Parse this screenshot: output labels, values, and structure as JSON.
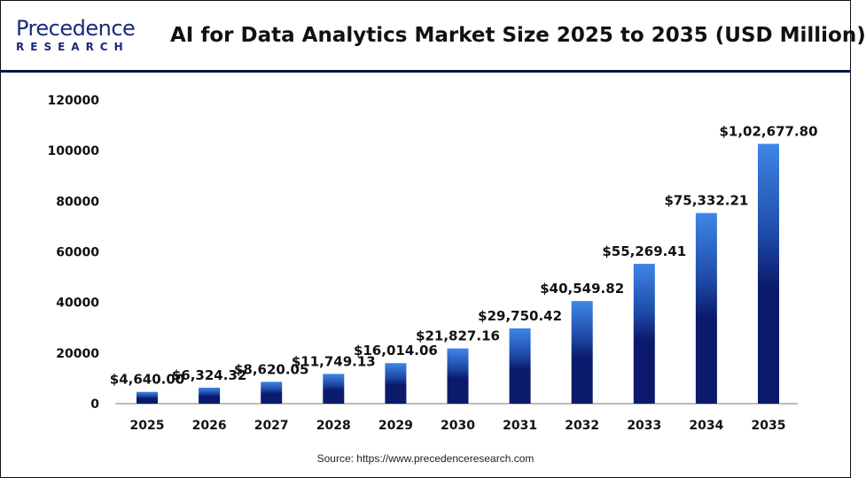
{
  "header": {
    "logo_line1": "Precedence",
    "logo_line2": "RESEARCH",
    "title": "AI for Data Analytics Market Size 2025 to 2035 (USD Million)"
  },
  "footer": {
    "source": "Source: https://www.precedenceresearch.com"
  },
  "colors": {
    "bar_top": "#3f86e6",
    "bar_bottom": "#0b1a6b",
    "header_rule": "#0d1446"
  },
  "chart_data": {
    "type": "bar",
    "title": "AI for Data Analytics Market Size 2025 to 2035 (USD Million)",
    "categories": [
      "2025",
      "2026",
      "2027",
      "2028",
      "2029",
      "2030",
      "2031",
      "2032",
      "2033",
      "2034",
      "2035"
    ],
    "values": [
      4640.0,
      6324.32,
      8620.05,
      11749.13,
      16014.06,
      21827.16,
      29750.42,
      40549.82,
      55269.41,
      75332.21,
      102677.8
    ],
    "data_labels": [
      "$4,640.00",
      "$6,324.32",
      "$8,620.05",
      "$11,749.13",
      "$16,014.06",
      "$21,827.16",
      "$29,750.42",
      "$40,549.82",
      "$55,269.41",
      "$75,332.21",
      "$1,02,677.80"
    ],
    "yticks": [
      "0",
      "20000",
      "40000",
      "60000",
      "80000",
      "100000",
      "120000"
    ],
    "ylim": [
      0,
      120000
    ],
    "xlabel": "",
    "ylabel": "",
    "grid": false,
    "legend": "none"
  }
}
